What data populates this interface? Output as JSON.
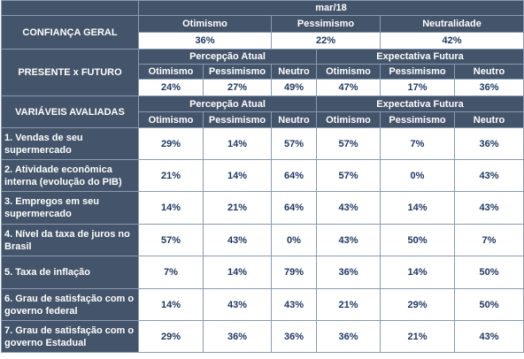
{
  "period": "mar/18",
  "confidence": {
    "label": "CONFIANÇA GERAL",
    "headers": [
      "Otimismo",
      "Pessimismo",
      "Neutralidade"
    ],
    "values": [
      "36%",
      "22%",
      "42%"
    ]
  },
  "present_future": {
    "label": "PRESENTE x FUTURO",
    "group_current": "Percepção Atual",
    "group_future": "Expectativa Futura",
    "sub_headers": [
      "Otimismo",
      "Pessimismo",
      "Neutro",
      "Otimismo",
      "Pessimismo",
      "Neutro"
    ],
    "values": [
      "24%",
      "27%",
      "49%",
      "47%",
      "17%",
      "36%"
    ]
  },
  "variables": {
    "label": "VARIÁVEIS AVALIADAS",
    "group_current": "Percepção Atual",
    "group_future": "Expectativa Futura",
    "sub_headers": [
      "Otimismo",
      "Pessimismo",
      "Neutro",
      "Otimismo",
      "Pessimismo",
      "Neutro"
    ],
    "rows": [
      {
        "label": "1. Vendas de seu supermercado",
        "values": [
          "29%",
          "14%",
          "57%",
          "57%",
          "7%",
          "36%"
        ]
      },
      {
        "label": "2. Atividade econômica interna (evolução do PIB)",
        "values": [
          "21%",
          "14%",
          "64%",
          "57%",
          "0%",
          "43%"
        ]
      },
      {
        "label": "3. Empregos em seu supermercado",
        "values": [
          "14%",
          "21%",
          "64%",
          "43%",
          "14%",
          "43%"
        ]
      },
      {
        "label": "4. Nível da taxa de juros no Brasil",
        "values": [
          "57%",
          "43%",
          "0%",
          "43%",
          "50%",
          "7%"
        ]
      },
      {
        "label": "5. Taxa de inflação",
        "values": [
          "7%",
          "14%",
          "79%",
          "36%",
          "14%",
          "50%"
        ]
      },
      {
        "label": "6. Grau de satisfação com o governo federal",
        "values": [
          "14%",
          "43%",
          "43%",
          "21%",
          "29%",
          "50%"
        ]
      },
      {
        "label": "7. Grau de satisfação com o governo Estadual",
        "values": [
          "29%",
          "36%",
          "36%",
          "36%",
          "21%",
          "43%"
        ]
      }
    ]
  }
}
